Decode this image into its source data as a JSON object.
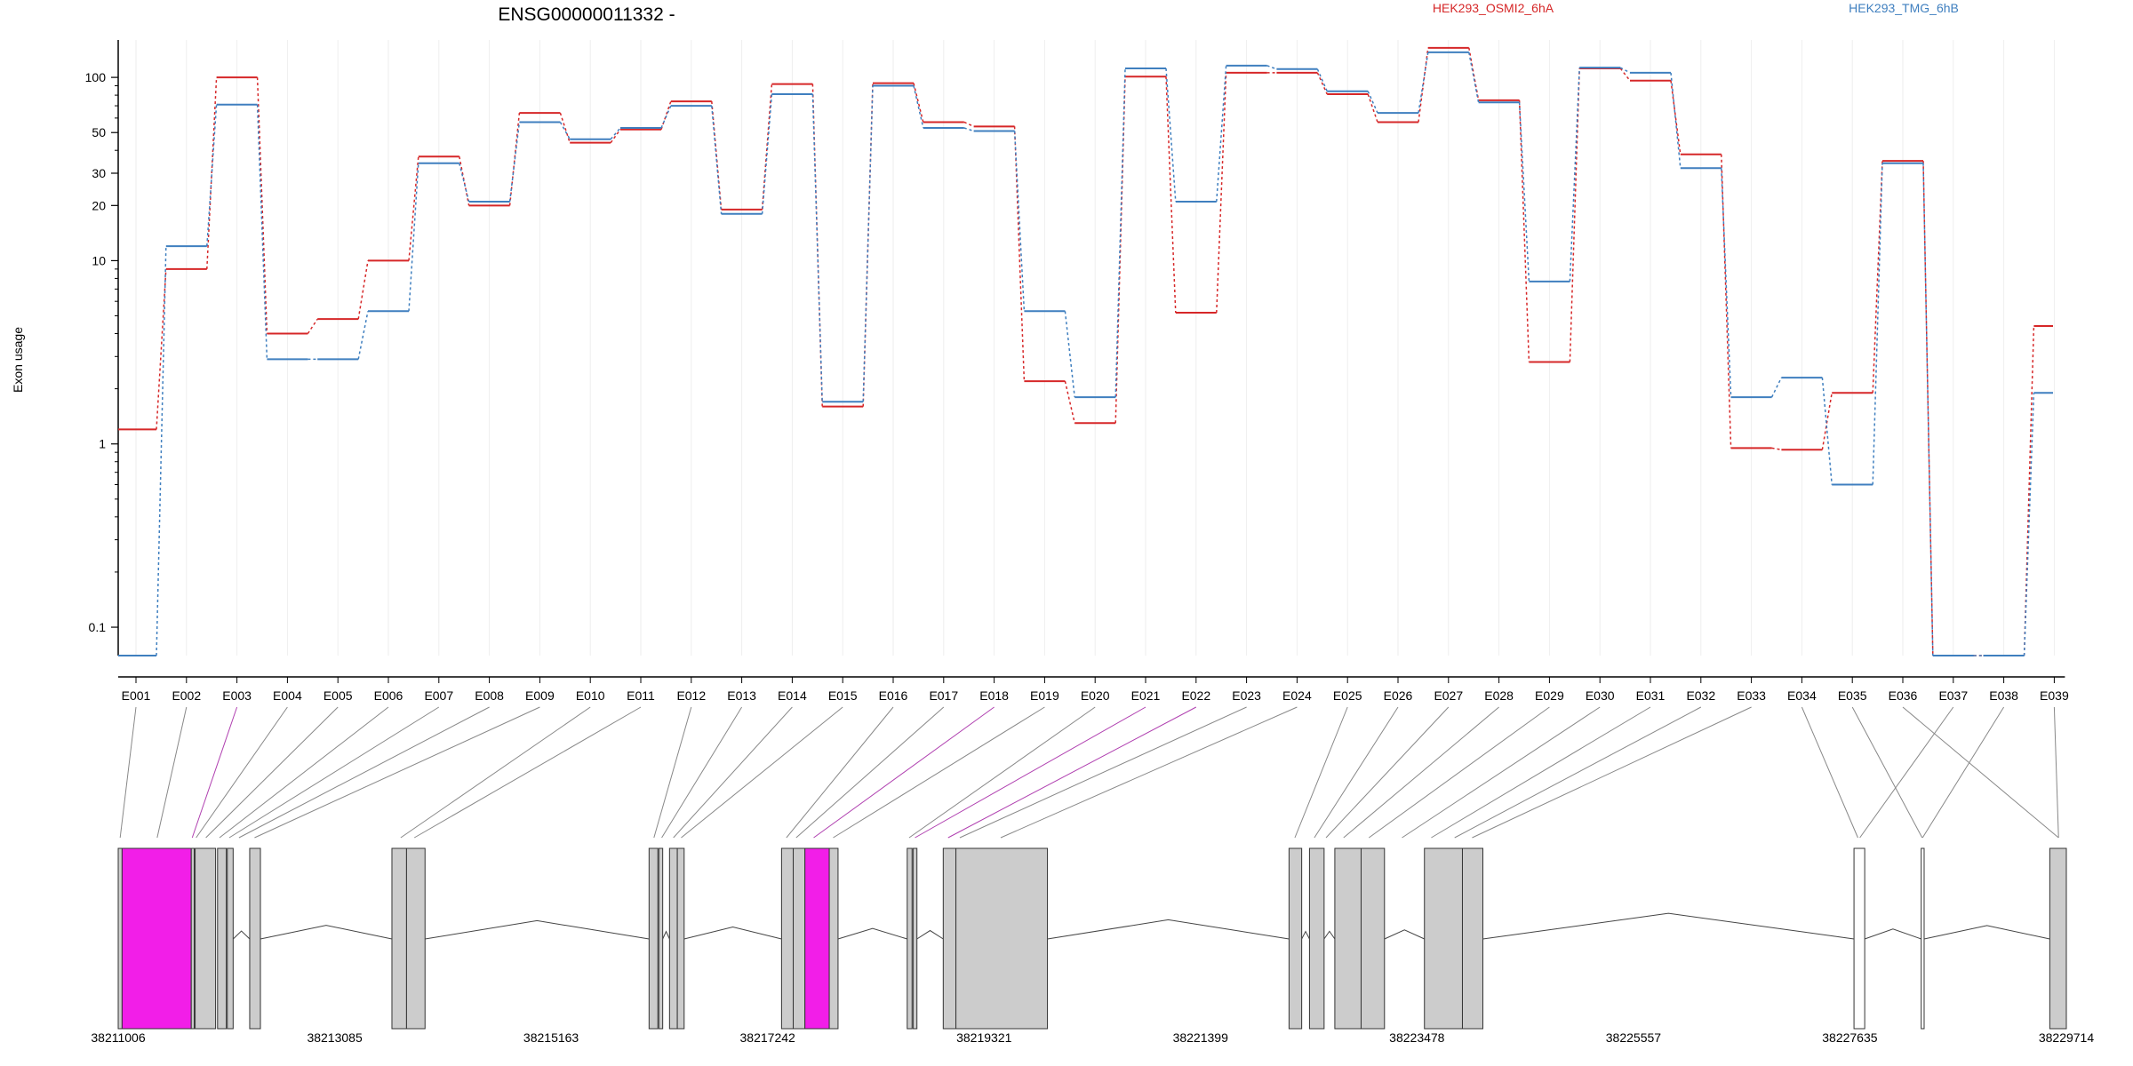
{
  "chart_data": {
    "type": "line",
    "title": "ENSG00000011332 -",
    "ylabel": "Exon usage",
    "y_scale": "log",
    "ylim": [
      0.07,
      160
    ],
    "y_ticks": [
      {
        "value": 0.1,
        "label": "0.1"
      },
      {
        "value": 1,
        "label": "1"
      },
      {
        "value": 10,
        "label": "10"
      },
      {
        "value": 20,
        "label": "20"
      },
      {
        "value": 30,
        "label": "30"
      },
      {
        "value": 50,
        "label": "50"
      },
      {
        "value": 100,
        "label": "100"
      }
    ],
    "grid": true,
    "legend_position": "top",
    "categories": [
      "E001",
      "E002",
      "E003",
      "E004",
      "E005",
      "E006",
      "E007",
      "E008",
      "E009",
      "E010",
      "E011",
      "E012",
      "E013",
      "E014",
      "E015",
      "E016",
      "E017",
      "E018",
      "E019",
      "E020",
      "E021",
      "E022",
      "E023",
      "E024",
      "E025",
      "E026",
      "E027",
      "E028",
      "E029",
      "E030",
      "E031",
      "E032",
      "E033",
      "E034",
      "E035",
      "E036",
      "E037",
      "E038",
      "E039"
    ],
    "series": [
      {
        "name": "HEK293_OSMI2_6hA",
        "color": "#d62728",
        "values": [
          1.2,
          9,
          100,
          4,
          4.8,
          10,
          37,
          20,
          64,
          44,
          52,
          74,
          19,
          92,
          1.6,
          93,
          57,
          54,
          2.2,
          1.3,
          101,
          5.2,
          106,
          106,
          81,
          57,
          145,
          75,
          2.8,
          112,
          96,
          38,
          0.95,
          0.93,
          1.9,
          35,
          0.07,
          0.07,
          4.4
        ]
      },
      {
        "name": "HEK293_TMG_6hB",
        "color": "#3f7fbf",
        "values": [
          0.07,
          12,
          71,
          2.9,
          2.9,
          5.3,
          34,
          21,
          57,
          46,
          53,
          70,
          18,
          81,
          1.7,
          90,
          53,
          51,
          5.3,
          1.8,
          112,
          21,
          116,
          111,
          84,
          64,
          137,
          73,
          7.7,
          113,
          106,
          32,
          1.8,
          2.3,
          0.6,
          34,
          0.07,
          0.07,
          1.9
        ]
      }
    ],
    "gene_model": {
      "coordinate_ticks": [
        "38211006",
        "38213085",
        "38215163",
        "38217242",
        "38219321",
        "38221399",
        "38223478",
        "38225557",
        "38227635",
        "38229714"
      ],
      "start": 38211006,
      "end": 38229714,
      "exon_fill": "#cccccc",
      "highlight_fill": "#f21ee8"
    }
  }
}
